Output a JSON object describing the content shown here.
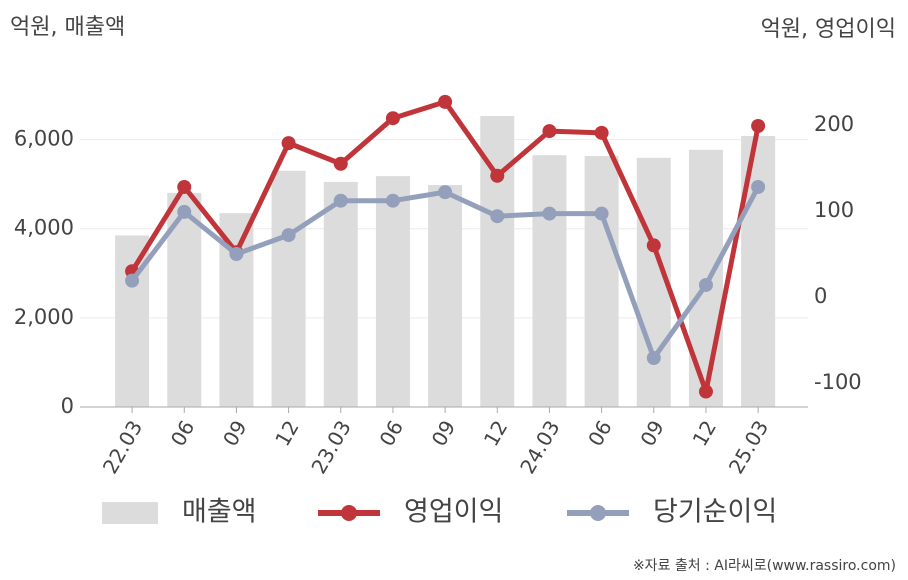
{
  "chart_data": {
    "type": "combo",
    "y_label": "억원, 매출액",
    "y2_label": "억원, 영업이익",
    "source": "※자료 출처 : AI라씨로(www.rassiro.com)",
    "categories": [
      "22.03",
      "06",
      "09",
      "12",
      "23.03",
      "06",
      "09",
      "12",
      "24.03",
      "06",
      "09",
      "12",
      "25.03"
    ],
    "series": [
      {
        "name": "매출액",
        "type": "bar",
        "color": "#dcdcdc",
        "values": [
          3850,
          4800,
          4350,
          5300,
          5050,
          5180,
          4980,
          6530,
          5650,
          5630,
          5590,
          5770,
          6080
        ]
      },
      {
        "name": "영업이익",
        "type": "line",
        "axis": "y2",
        "color": "#c0353a",
        "values": [
          30,
          128,
          52,
          179,
          155,
          208,
          227,
          141,
          193,
          191,
          60,
          -110,
          199
        ]
      },
      {
        "name": "당기순이익",
        "type": "line",
        "axis": "y2",
        "color": "#94a0bb",
        "values": [
          19,
          99,
          50,
          72,
          112,
          112,
          122,
          94,
          97,
          97,
          -71,
          14,
          128
        ]
      }
    ],
    "ylim": [
      0,
      7000
    ],
    "yticks": [
      0,
      {
        "value": 2000,
        "label": "2,000"
      },
      {
        "value": 4000,
        "label": "4,000"
      },
      {
        "value": 6000,
        "label": "6,000"
      }
    ],
    "y2lim": [
      -128,
      235
    ],
    "y2ticks": [
      -100,
      0,
      100,
      200
    ],
    "grid": true
  }
}
